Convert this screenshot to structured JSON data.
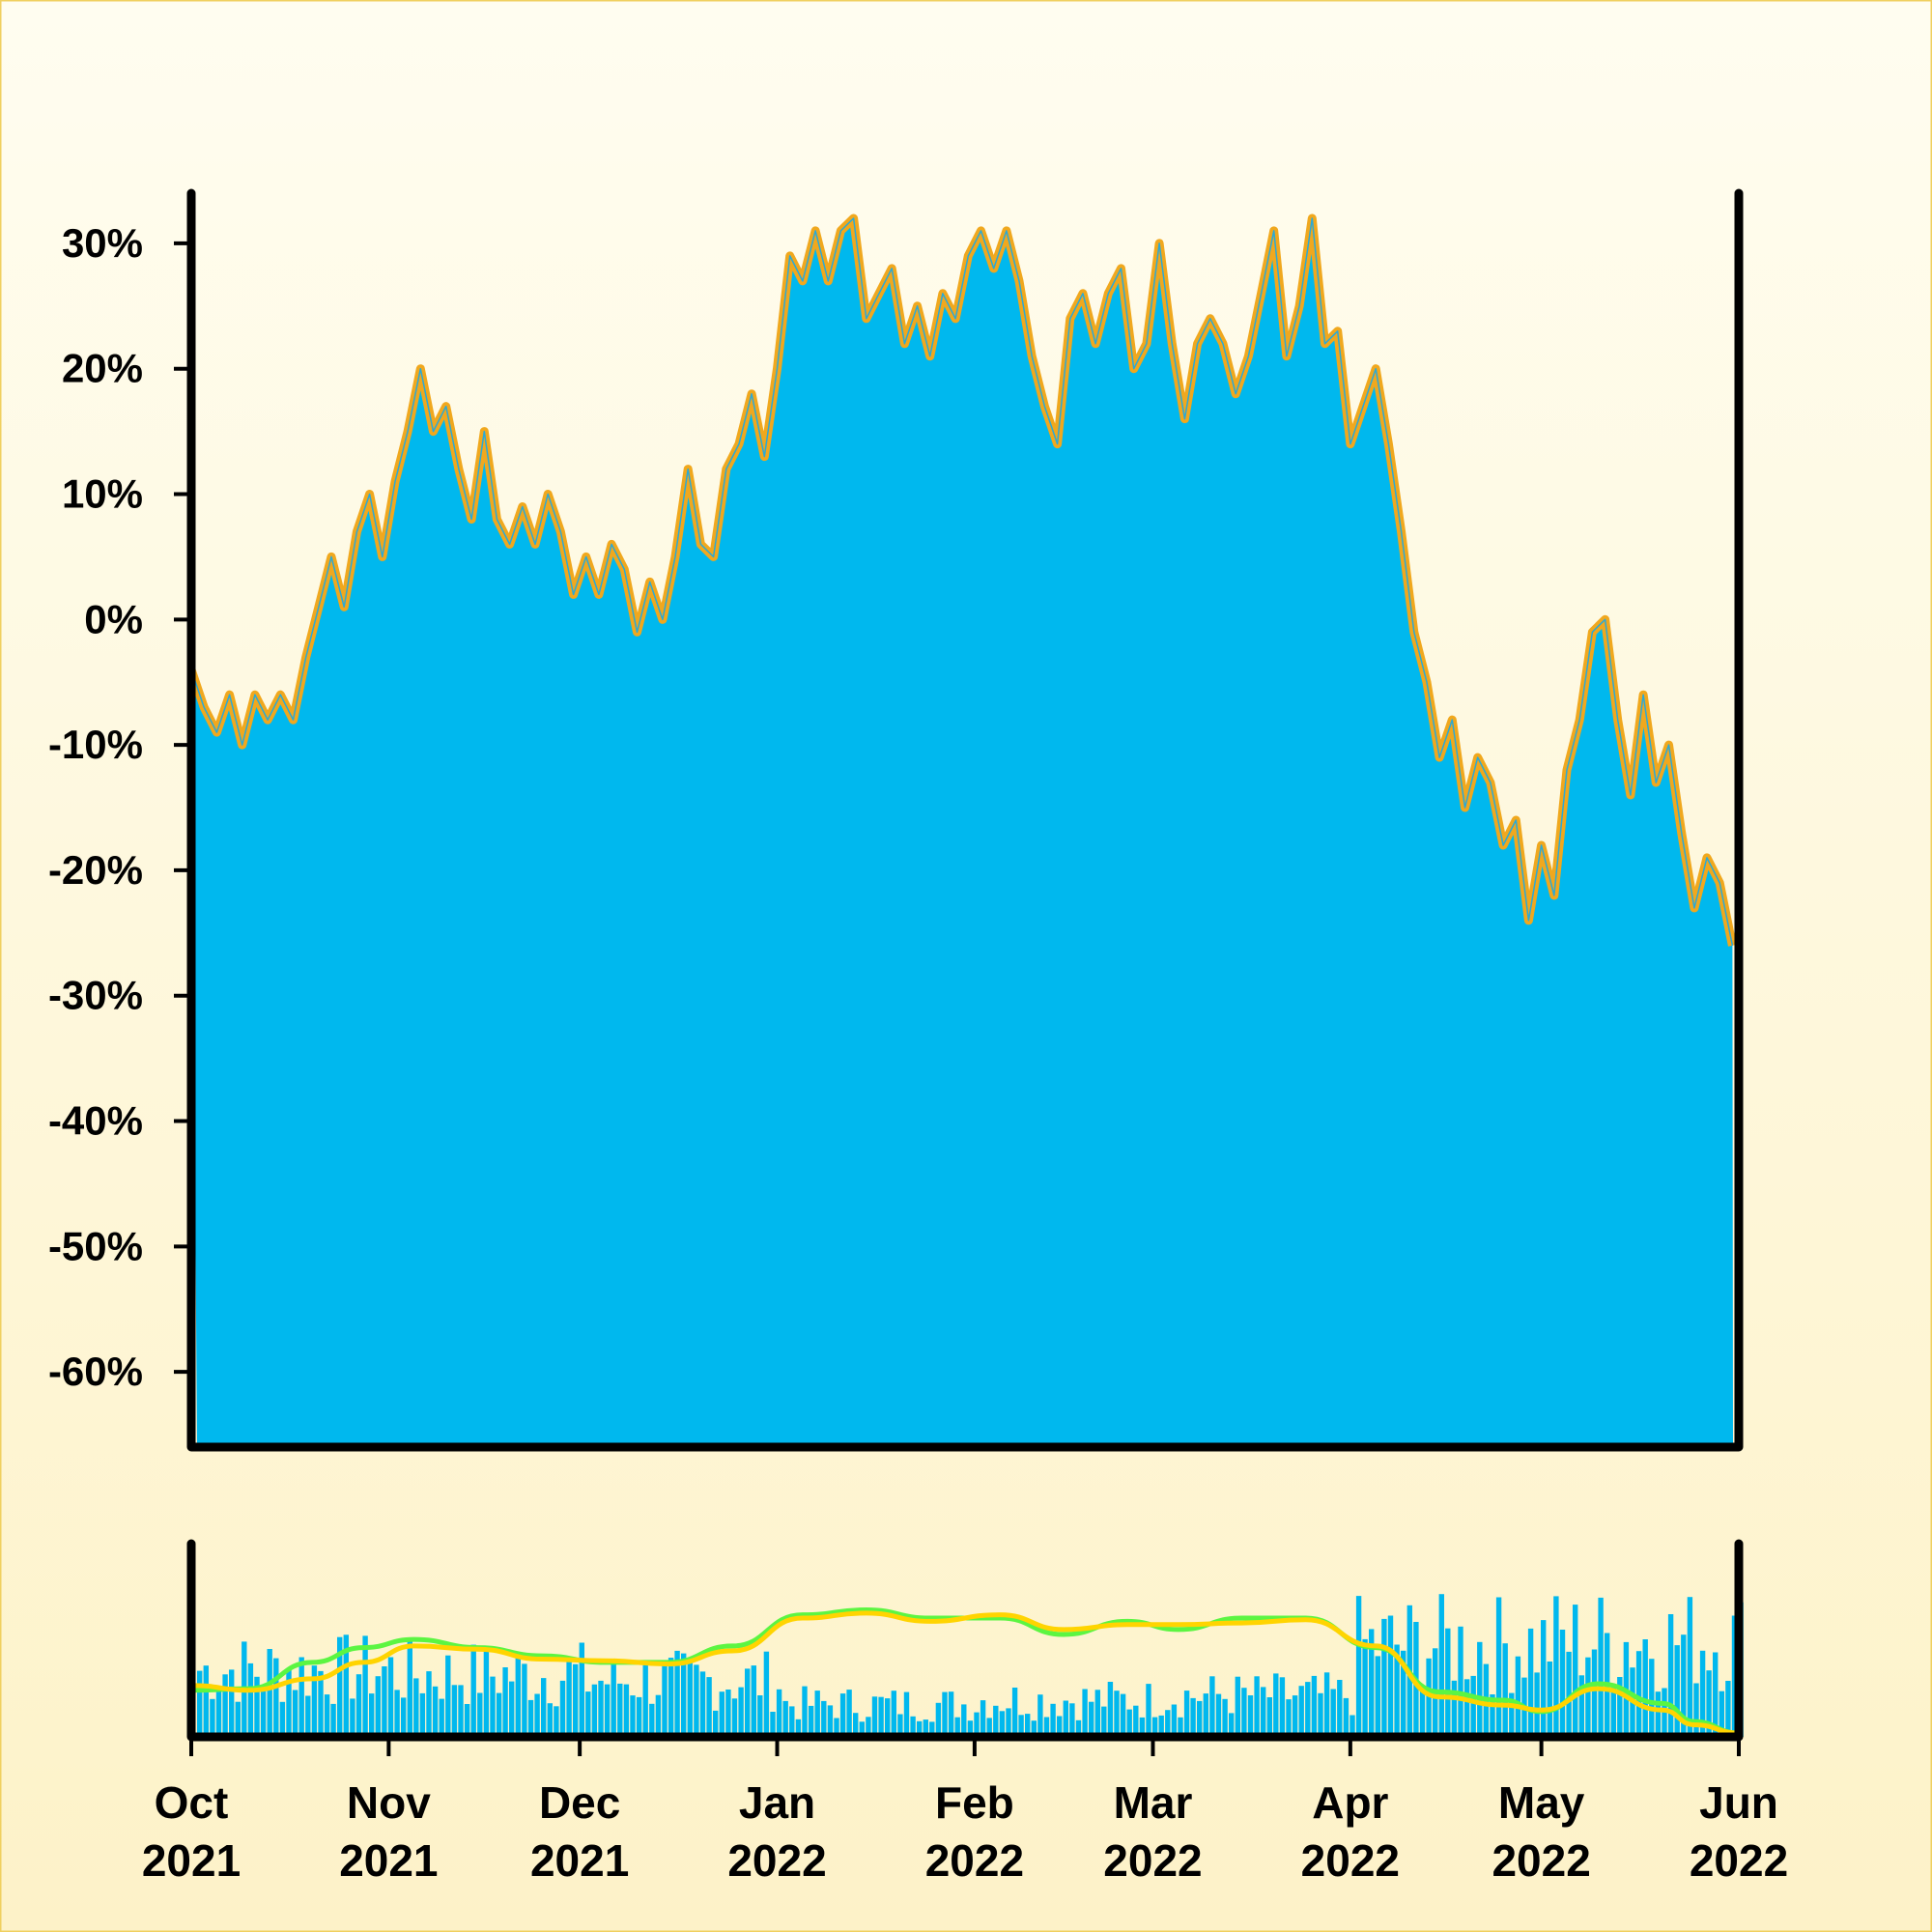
{
  "chart_data": [
    {
      "type": "area",
      "panel": "price",
      "title": "",
      "xlabel": "",
      "ylabel": "",
      "x_range": [
        "2021-10-01",
        "2022-06-01"
      ],
      "ylim": [
        -0.66,
        0.34
      ],
      "y_format": "percent",
      "grid": false,
      "legend": "none",
      "y_ticks": [
        {
          "value": 0.3,
          "label": "30%"
        },
        {
          "value": 0.2,
          "label": "20%"
        },
        {
          "value": 0.1,
          "label": "10%"
        },
        {
          "value": 0.0,
          "label": "0%"
        },
        {
          "value": -0.1,
          "label": "-10%"
        },
        {
          "value": -0.2,
          "label": "-20%"
        },
        {
          "value": -0.3,
          "label": "-30%"
        },
        {
          "value": -0.4,
          "label": "-40%"
        },
        {
          "value": -0.5,
          "label": "-50%"
        },
        {
          "value": -0.6,
          "label": "-60%"
        }
      ],
      "x_ticks": [
        {
          "date": "2021-10-01",
          "month": "Oct",
          "year": "2021"
        },
        {
          "date": "2021-11-01",
          "month": "Nov",
          "year": "2021"
        },
        {
          "date": "2021-12-01",
          "month": "Dec",
          "year": "2021"
        },
        {
          "date": "2022-01-01",
          "month": "Jan",
          "year": "2022"
        },
        {
          "date": "2022-02-01",
          "month": "Feb",
          "year": "2022"
        },
        {
          "date": "2022-03-01",
          "month": "Mar",
          "year": "2022"
        },
        {
          "date": "2022-04-01",
          "month": "Apr",
          "year": "2022"
        },
        {
          "date": "2022-05-01",
          "month": "May",
          "year": "2022"
        },
        {
          "date": "2022-06-01",
          "month": "Jun",
          "year": "2022"
        }
      ],
      "colors": {
        "fill": "#00b8ee",
        "high_low_band": "#f0a81e"
      },
      "series": [
        {
          "role": "close",
          "points": [
            [
              "2021-10-01",
              -0.04
            ],
            [
              "2021-10-03",
              -0.07
            ],
            [
              "2021-10-05",
              -0.09
            ],
            [
              "2021-10-07",
              -0.06
            ],
            [
              "2021-10-09",
              -0.1
            ],
            [
              "2021-10-11",
              -0.06
            ],
            [
              "2021-10-13",
              -0.08
            ],
            [
              "2021-10-15",
              -0.06
            ],
            [
              "2021-10-17",
              -0.08
            ],
            [
              "2021-10-19",
              -0.03
            ],
            [
              "2021-10-21",
              0.01
            ],
            [
              "2021-10-23",
              0.05
            ],
            [
              "2021-10-25",
              0.01
            ],
            [
              "2021-10-27",
              0.07
            ],
            [
              "2021-10-29",
              0.1
            ],
            [
              "2021-10-31",
              0.05
            ],
            [
              "2021-11-02",
              0.11
            ],
            [
              "2021-11-04",
              0.15
            ],
            [
              "2021-11-06",
              0.2
            ],
            [
              "2021-11-08",
              0.15
            ],
            [
              "2021-11-10",
              0.17
            ],
            [
              "2021-11-12",
              0.12
            ],
            [
              "2021-11-14",
              0.08
            ],
            [
              "2021-11-16",
              0.15
            ],
            [
              "2021-11-18",
              0.08
            ],
            [
              "2021-11-20",
              0.06
            ],
            [
              "2021-11-22",
              0.09
            ],
            [
              "2021-11-24",
              0.06
            ],
            [
              "2021-11-26",
              0.1
            ],
            [
              "2021-11-28",
              0.07
            ],
            [
              "2021-11-30",
              0.02
            ],
            [
              "2021-12-02",
              0.05
            ],
            [
              "2021-12-04",
              0.02
            ],
            [
              "2021-12-06",
              0.06
            ],
            [
              "2021-12-08",
              0.04
            ],
            [
              "2021-12-10",
              -0.01
            ],
            [
              "2021-12-12",
              0.03
            ],
            [
              "2021-12-14",
              0.0
            ],
            [
              "2021-12-16",
              0.05
            ],
            [
              "2021-12-18",
              0.12
            ],
            [
              "2021-12-20",
              0.06
            ],
            [
              "2021-12-22",
              0.05
            ],
            [
              "2021-12-24",
              0.12
            ],
            [
              "2021-12-26",
              0.14
            ],
            [
              "2021-12-28",
              0.18
            ],
            [
              "2021-12-30",
              0.13
            ],
            [
              "2022-01-01",
              0.2
            ],
            [
              "2022-01-03",
              0.29
            ],
            [
              "2022-01-05",
              0.27
            ],
            [
              "2022-01-07",
              0.31
            ],
            [
              "2022-01-09",
              0.27
            ],
            [
              "2022-01-11",
              0.31
            ],
            [
              "2022-01-13",
              0.32
            ],
            [
              "2022-01-15",
              0.24
            ],
            [
              "2022-01-17",
              0.26
            ],
            [
              "2022-01-19",
              0.28
            ],
            [
              "2022-01-21",
              0.22
            ],
            [
              "2022-01-23",
              0.25
            ],
            [
              "2022-01-25",
              0.21
            ],
            [
              "2022-01-27",
              0.26
            ],
            [
              "2022-01-29",
              0.24
            ],
            [
              "2022-01-31",
              0.29
            ],
            [
              "2022-02-02",
              0.31
            ],
            [
              "2022-02-04",
              0.28
            ],
            [
              "2022-02-06",
              0.31
            ],
            [
              "2022-02-08",
              0.27
            ],
            [
              "2022-02-10",
              0.21
            ],
            [
              "2022-02-12",
              0.17
            ],
            [
              "2022-02-14",
              0.14
            ],
            [
              "2022-02-16",
              0.24
            ],
            [
              "2022-02-18",
              0.26
            ],
            [
              "2022-02-20",
              0.22
            ],
            [
              "2022-02-22",
              0.26
            ],
            [
              "2022-02-24",
              0.28
            ],
            [
              "2022-02-26",
              0.2
            ],
            [
              "2022-02-28",
              0.22
            ],
            [
              "2022-03-02",
              0.3
            ],
            [
              "2022-03-04",
              0.22
            ],
            [
              "2022-03-06",
              0.16
            ],
            [
              "2022-03-08",
              0.22
            ],
            [
              "2022-03-10",
              0.24
            ],
            [
              "2022-03-12",
              0.22
            ],
            [
              "2022-03-14",
              0.18
            ],
            [
              "2022-03-16",
              0.21
            ],
            [
              "2022-03-18",
              0.26
            ],
            [
              "2022-03-20",
              0.31
            ],
            [
              "2022-03-22",
              0.21
            ],
            [
              "2022-03-24",
              0.25
            ],
            [
              "2022-03-26",
              0.32
            ],
            [
              "2022-03-28",
              0.22
            ],
            [
              "2022-03-30",
              0.23
            ],
            [
              "2022-04-01",
              0.14
            ],
            [
              "2022-04-03",
              0.17
            ],
            [
              "2022-04-05",
              0.2
            ],
            [
              "2022-04-07",
              0.14
            ],
            [
              "2022-04-09",
              0.07
            ],
            [
              "2022-04-11",
              -0.01
            ],
            [
              "2022-04-13",
              -0.05
            ],
            [
              "2022-04-15",
              -0.11
            ],
            [
              "2022-04-17",
              -0.08
            ],
            [
              "2022-04-19",
              -0.15
            ],
            [
              "2022-04-21",
              -0.11
            ],
            [
              "2022-04-23",
              -0.13
            ],
            [
              "2022-04-25",
              -0.18
            ],
            [
              "2022-04-27",
              -0.16
            ],
            [
              "2022-04-29",
              -0.24
            ],
            [
              "2022-05-01",
              -0.18
            ],
            [
              "2022-05-03",
              -0.22
            ],
            [
              "2022-05-05",
              -0.12
            ],
            [
              "2022-05-07",
              -0.08
            ],
            [
              "2022-05-09",
              -0.01
            ],
            [
              "2022-05-11",
              0.0
            ],
            [
              "2022-05-13",
              -0.08
            ],
            [
              "2022-05-15",
              -0.14
            ],
            [
              "2022-05-17",
              -0.06
            ],
            [
              "2022-05-19",
              -0.13
            ],
            [
              "2022-05-21",
              -0.1
            ],
            [
              "2022-05-23",
              -0.17
            ],
            [
              "2022-05-25",
              -0.23
            ],
            [
              "2022-05-27",
              -0.19
            ],
            [
              "2022-05-29",
              -0.21
            ],
            [
              "2022-05-31",
              -0.26
            ]
          ]
        }
      ]
    },
    {
      "type": "bar",
      "panel": "volume",
      "title": "",
      "ylabel": "",
      "y_ticks": [],
      "colors": {
        "bars": "#00b8ee",
        "ma_short": "#5cf542",
        "ma_long": "#ffd400"
      },
      "volume_by_month": [
        {
          "month": "Oct",
          "level": 0.45
        },
        {
          "month": "Nov",
          "level": 0.42
        },
        {
          "month": "Dec",
          "level": 0.38
        },
        {
          "month": "Jan",
          "level": 0.22
        },
        {
          "month": "Feb",
          "level": 0.25
        },
        {
          "month": "Mar",
          "level": 0.28
        },
        {
          "month": "Apr",
          "level": 0.62
        },
        {
          "month": "May",
          "level": 0.65
        }
      ],
      "series": [
        {
          "role": "moving-average-short",
          "points": [
            [
              "2021-10-01",
              0.26
            ],
            [
              "2021-10-10",
              0.27
            ],
            [
              "2021-10-20",
              0.43
            ],
            [
              "2021-10-28",
              0.52
            ],
            [
              "2021-11-05",
              0.57
            ],
            [
              "2021-11-15",
              0.52
            ],
            [
              "2021-11-25",
              0.47
            ],
            [
              "2021-12-05",
              0.43
            ],
            [
              "2021-12-15",
              0.43
            ],
            [
              "2021-12-25",
              0.53
            ],
            [
              "2022-01-05",
              0.72
            ],
            [
              "2022-01-15",
              0.75
            ],
            [
              "2022-01-25",
              0.7
            ],
            [
              "2022-02-05",
              0.7
            ],
            [
              "2022-02-15",
              0.6
            ],
            [
              "2022-02-25",
              0.68
            ],
            [
              "2022-03-05",
              0.63
            ],
            [
              "2022-03-15",
              0.7
            ],
            [
              "2022-03-25",
              0.7
            ],
            [
              "2022-04-05",
              0.52
            ],
            [
              "2022-04-15",
              0.25
            ],
            [
              "2022-04-25",
              0.2
            ],
            [
              "2022-05-01",
              0.13
            ],
            [
              "2022-05-10",
              0.3
            ],
            [
              "2022-05-20",
              0.18
            ],
            [
              "2022-05-25",
              0.07
            ],
            [
              "2022-06-01",
              0.0
            ]
          ]
        },
        {
          "role": "moving-average-long",
          "points": [
            [
              "2021-10-01",
              0.29
            ],
            [
              "2021-10-10",
              0.26
            ],
            [
              "2021-10-20",
              0.33
            ],
            [
              "2021-10-28",
              0.43
            ],
            [
              "2021-11-05",
              0.53
            ],
            [
              "2021-11-15",
              0.51
            ],
            [
              "2021-11-25",
              0.45
            ],
            [
              "2021-12-05",
              0.44
            ],
            [
              "2021-12-15",
              0.42
            ],
            [
              "2021-12-25",
              0.5
            ],
            [
              "2022-01-05",
              0.7
            ],
            [
              "2022-01-15",
              0.73
            ],
            [
              "2022-01-25",
              0.68
            ],
            [
              "2022-02-05",
              0.72
            ],
            [
              "2022-02-15",
              0.63
            ],
            [
              "2022-02-25",
              0.66
            ],
            [
              "2022-03-05",
              0.66
            ],
            [
              "2022-03-15",
              0.67
            ],
            [
              "2022-03-25",
              0.69
            ],
            [
              "2022-04-05",
              0.53
            ],
            [
              "2022-04-15",
              0.22
            ],
            [
              "2022-04-25",
              0.17
            ],
            [
              "2022-05-01",
              0.14
            ],
            [
              "2022-05-10",
              0.27
            ],
            [
              "2022-05-20",
              0.14
            ],
            [
              "2022-05-25",
              0.05
            ],
            [
              "2022-06-01",
              0.0
            ]
          ]
        }
      ]
    }
  ],
  "page": {
    "bg_top": "#fffdf0",
    "bg_bottom": "#fdf2c8",
    "border": "#f0d060"
  }
}
